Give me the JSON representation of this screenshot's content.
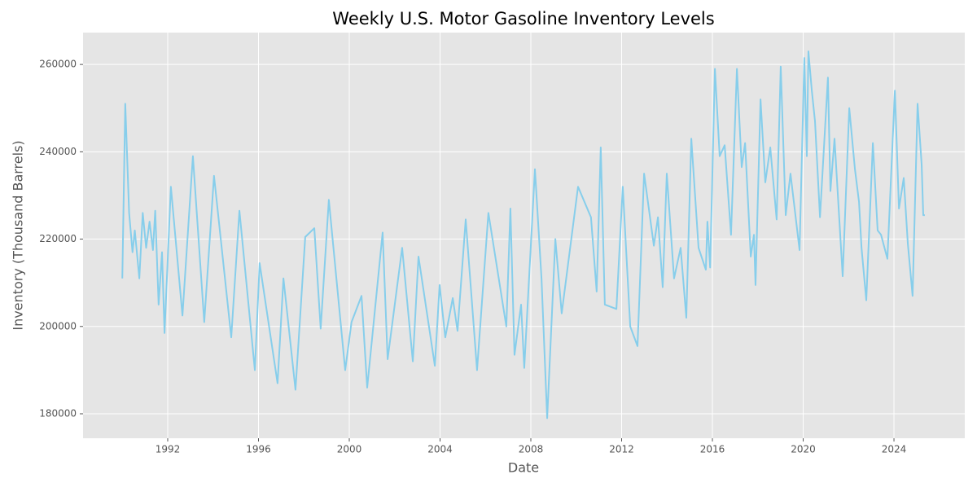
{
  "chart_data": {
    "type": "line",
    "title": "Weekly U.S. Motor Gasoline Inventory Levels",
    "x_label": "Date",
    "y_label": "Inventory (Thousand Barrels)",
    "x": [
      1990.0,
      1990.13,
      1990.3,
      1990.45,
      1990.55,
      1990.75,
      1990.9,
      1991.05,
      1991.2,
      1991.35,
      1991.45,
      1991.6,
      1991.75,
      1991.86,
      1992.14,
      1992.65,
      1993.11,
      1993.61,
      1994.04,
      1994.8,
      1995.16,
      1995.84,
      1996.05,
      1996.84,
      1997.1,
      1997.63,
      1998.06,
      1998.46,
      1998.74,
      1999.1,
      1999.82,
      2000.1,
      2000.54,
      2000.79,
      2001.47,
      2001.69,
      2002.33,
      2002.8,
      2003.05,
      2003.77,
      2003.98,
      2004.23,
      2004.56,
      2004.77,
      2005.13,
      2005.63,
      2006.13,
      2006.92,
      2007.1,
      2007.28,
      2007.57,
      2007.71,
      2008.18,
      2008.47,
      2008.72,
      2009.08,
      2009.36,
      2010.08,
      2010.65,
      2010.9,
      2011.08,
      2011.26,
      2011.77,
      2012.05,
      2012.38,
      2012.7,
      2012.99,
      2013.42,
      2013.6,
      2013.81,
      2013.99,
      2014.31,
      2014.6,
      2014.85,
      2015.07,
      2015.39,
      2015.71,
      2015.78,
      2015.9,
      2016.11,
      2016.32,
      2016.54,
      2016.82,
      2017.08,
      2017.29,
      2017.44,
      2017.69,
      2017.83,
      2017.9,
      2018.12,
      2018.33,
      2018.55,
      2018.83,
      2019.01,
      2019.23,
      2019.44,
      2019.84,
      2020.05,
      2020.16,
      2020.23,
      2020.38,
      2020.52,
      2020.74,
      2021.09,
      2021.2,
      2021.38,
      2021.74,
      2022.03,
      2022.28,
      2022.46,
      2022.57,
      2022.78,
      2023.07,
      2023.28,
      2023.43,
      2023.71,
      2024.04,
      2024.22,
      2024.43,
      2024.61,
      2024.82,
      2025.04,
      2025.22,
      2025.29,
      2025.36
    ],
    "series": [
      {
        "name": "Inventory",
        "color": "#87ceeb",
        "values": [
          211000,
          251000,
          226000,
          217000,
          222000,
          211000,
          226000,
          218000,
          224000,
          217500,
          226500,
          205000,
          217000,
          198500,
          232000,
          202500,
          239000,
          201000,
          234500,
          197500,
          226500,
          190000,
          214500,
          187000,
          211000,
          185500,
          220500,
          222500,
          199500,
          229000,
          190000,
          201000,
          207000,
          186000,
          221500,
          192500,
          218000,
          192000,
          216000,
          191000,
          209500,
          197500,
          206500,
          199000,
          224500,
          190000,
          226000,
          200000,
          227000,
          193500,
          205000,
          190500,
          236000,
          211000,
          179000,
          220000,
          203000,
          232000,
          225000,
          208000,
          241000,
          205000,
          204000,
          232000,
          200000,
          195500,
          235000,
          218500,
          225000,
          209000,
          235000,
          211000,
          218000,
          202000,
          243000,
          218000,
          213000,
          224000,
          213500,
          259000,
          239000,
          241500,
          221000,
          259000,
          236500,
          242000,
          216000,
          221000,
          209500,
          252000,
          233000,
          241000,
          224500,
          259500,
          225500,
          235000,
          217500,
          261500,
          239000,
          263000,
          254000,
          247000,
          225000,
          257000,
          231000,
          243000,
          211500,
          250000,
          236000,
          228500,
          218000,
          206000,
          242000,
          222000,
          221000,
          215500,
          254000,
          227000,
          234000,
          219000,
          207000,
          251000,
          237000,
          225500,
          225500
        ]
      }
    ],
    "xlim": [
      1988.27,
      2027.12
    ],
    "xticks": [
      1992,
      1996,
      2000,
      2004,
      2008,
      2012,
      2016,
      2020,
      2024
    ],
    "ylim": [
      174400,
      267300
    ],
    "yticks": [
      180000,
      200000,
      220000,
      240000,
      260000
    ],
    "grid": true
  }
}
